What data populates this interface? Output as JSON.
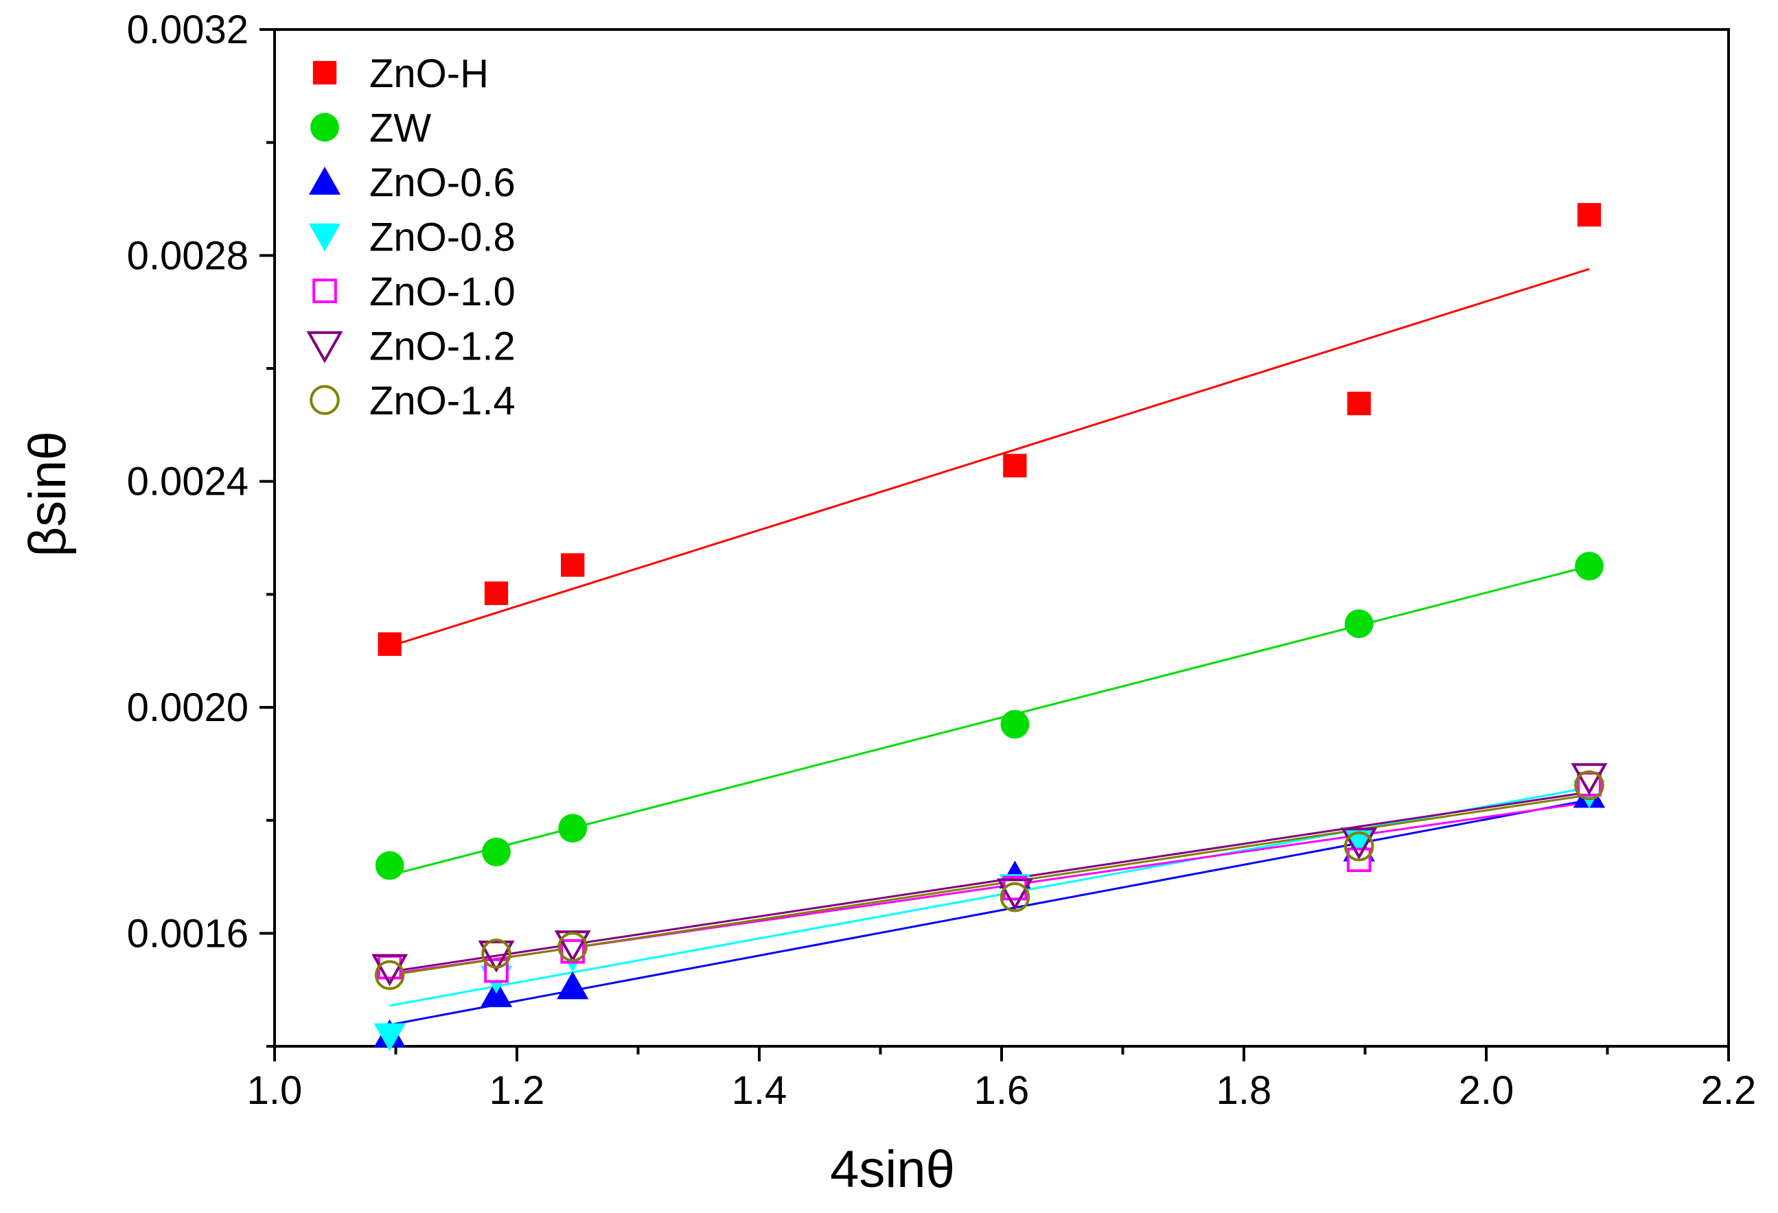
{
  "chart_data": {
    "type": "scatter",
    "xlabel": "4sinθ",
    "ylabel": "βsinθ",
    "xlim": [
      1.0,
      2.2
    ],
    "ylim": [
      0.0014,
      0.0032
    ],
    "xticks": [
      1.0,
      1.2,
      1.4,
      1.6,
      1.8,
      2.0,
      2.2
    ],
    "xtick_labels": [
      "1.0",
      "1.2",
      "1.4",
      "1.6",
      "1.8",
      "2.0",
      "2.2"
    ],
    "yticks": [
      0.0016,
      0.002,
      0.0024,
      0.0028,
      0.0032
    ],
    "ytick_labels": [
      "0.0016",
      "0.0020",
      "0.0024",
      "0.0028",
      "0.0032"
    ],
    "legend_position": "top-left",
    "series": [
      {
        "name": "ZnO-H",
        "color": "#ff0000",
        "marker": "square-filled",
        "x": [
          1.095,
          1.183,
          1.246,
          1.611,
          1.895,
          2.085
        ],
        "y": [
          0.002112,
          0.002202,
          0.002252,
          0.002428,
          0.002538,
          0.002872
        ],
        "fit": {
          "x": [
            1.095,
            2.085
          ],
          "y": [
            0.002108,
            0.002776
          ]
        }
      },
      {
        "name": "ZW",
        "color": "#00dd00",
        "marker": "circle-filled",
        "x": [
          1.095,
          1.183,
          1.246,
          1.611,
          1.895,
          2.085
        ],
        "y": [
          0.00172,
          0.001744,
          0.001786,
          0.00197,
          0.002148,
          0.00225
        ],
        "fit": {
          "x": [
            1.095,
            2.085
          ],
          "y": [
            0.001703,
            0.00225
          ]
        }
      },
      {
        "name": "ZnO-0.6",
        "color": "#0000ff",
        "marker": "triangle-up-filled",
        "x": [
          1.095,
          1.183,
          1.246,
          1.611,
          1.895,
          2.085
        ],
        "y": [
          0.001421,
          0.001492,
          0.001506,
          0.001702,
          0.00175,
          0.001845
        ],
        "fit": {
          "x": [
            1.095,
            2.085
          ],
          "y": [
            0.001438,
            0.001836
          ]
        }
      },
      {
        "name": "ZnO-0.8",
        "color": "#00ffff",
        "marker": "triangle-down-filled",
        "x": [
          1.095,
          1.183,
          1.246,
          1.611,
          1.895,
          2.085
        ],
        "y": [
          0.001418,
          0.00152,
          0.001558,
          0.001682,
          0.001764,
          0.001848
        ],
        "fit": {
          "x": [
            1.095,
            2.085
          ],
          "y": [
            0.001472,
            0.001858
          ]
        }
      },
      {
        "name": "ZnO-1.0",
        "color": "#ff00ff",
        "marker": "square-open",
        "x": [
          1.095,
          1.183,
          1.246,
          1.611,
          1.895,
          2.085
        ],
        "y": [
          0.00154,
          0.001534,
          0.001568,
          0.00168,
          0.00173,
          0.001864
        ],
        "fit": {
          "x": [
            1.095,
            2.085
          ],
          "y": [
            0.001528,
            0.001832
          ]
        }
      },
      {
        "name": "ZnO-1.2",
        "color": "#800080",
        "marker": "triangle-down-open",
        "x": [
          1.095,
          1.183,
          1.246,
          1.611,
          1.895,
          2.085
        ],
        "y": [
          0.001538,
          0.001562,
          0.00158,
          0.001672,
          0.001762,
          0.001876
        ],
        "fit": {
          "x": [
            1.095,
            2.085
          ],
          "y": [
            0.001532,
            0.00185
          ]
        }
      },
      {
        "name": "ZnO-1.4",
        "color": "#808000",
        "marker": "circle-open",
        "x": [
          1.095,
          1.183,
          1.246,
          1.611,
          1.895,
          2.085
        ],
        "y": [
          0.001526,
          0.001564,
          0.001576,
          0.001664,
          0.001754,
          0.001862
        ],
        "fit": {
          "x": [
            1.095,
            2.085
          ],
          "y": [
            0.001526,
            0.001845
          ]
        }
      }
    ]
  }
}
